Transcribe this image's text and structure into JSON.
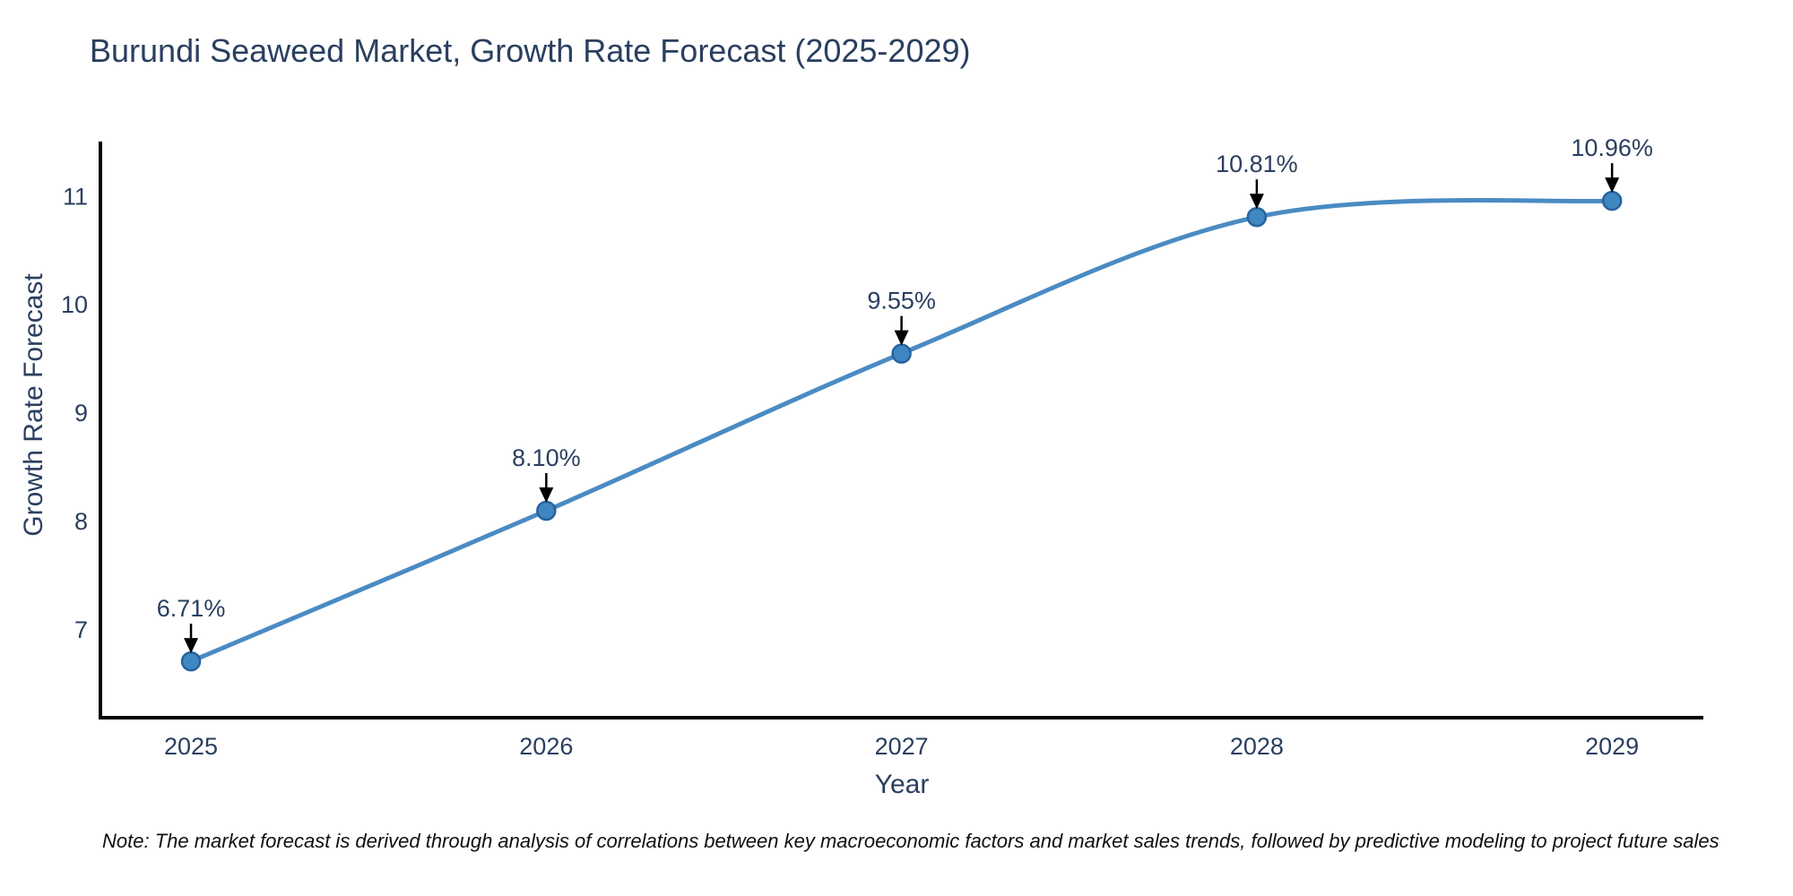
{
  "page": {
    "background": "#ffffff"
  },
  "chart_data": {
    "type": "line",
    "title": "Burundi Seaweed Market, Growth Rate Forecast (2025-2029)",
    "xlabel": "Year",
    "ylabel": "Growth Rate Forecast",
    "x": [
      2025,
      2026,
      2027,
      2028,
      2029
    ],
    "series": [
      {
        "name": "Growth Rate Forecast",
        "values": [
          6.71,
          8.1,
          9.55,
          10.81,
          10.96
        ]
      }
    ],
    "point_labels": [
      "6.71%",
      "8.10%",
      "9.55%",
      "10.81%",
      "10.96%"
    ],
    "xtick_labels": [
      "2025",
      "2026",
      "2027",
      "2028",
      "2029"
    ],
    "ytick_values": [
      7,
      8,
      9,
      10,
      11
    ],
    "ytick_labels": [
      "7",
      "8",
      "9",
      "10",
      "11"
    ],
    "xlim": [
      2024.745,
      2029.257
    ],
    "ylim": [
      6.19,
      11.49
    ],
    "line_shape": "spline",
    "grid": false,
    "legend_position": "none",
    "marker": "circle",
    "annotation_arrows": "down",
    "colors": {
      "line": "#4a8bc2",
      "marker_fill": "#3f87c1",
      "marker_edge": "#27639e",
      "text": "#2a3f5f",
      "axis": "#000000",
      "arrow": "#000000",
      "background": "#ffffff"
    },
    "footnote": "Note: The market forecast is derived through analysis of correlations between key macroeconomic factors and market sales trends, followed by predictive modeling to project future sales"
  }
}
